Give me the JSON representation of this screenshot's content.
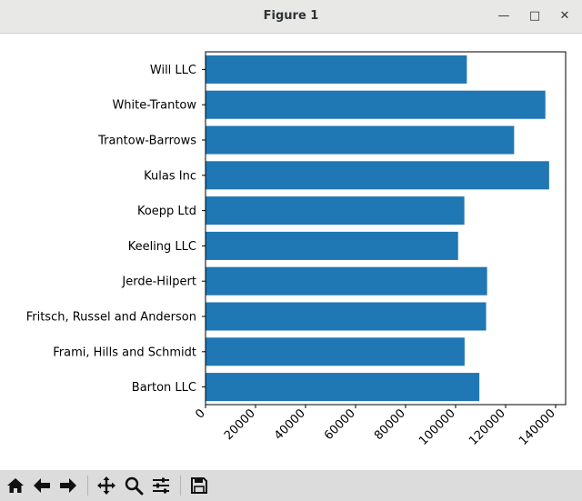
{
  "window": {
    "title": "Figure 1",
    "min_glyph": "—",
    "max_glyph": "□",
    "close_glyph": "✕"
  },
  "toolbar": {
    "icons": [
      "home-icon",
      "back-icon",
      "forward-icon",
      "pan-icon",
      "zoom-icon",
      "subplots-icon",
      "save-icon"
    ]
  },
  "chart_data": {
    "type": "bar",
    "orientation": "horizontal",
    "categories": [
      "Barton LLC",
      "Frami, Hills and Schmidt",
      "Fritsch, Russel and Anderson",
      "Jerde-Hilpert",
      "Keeling LLC",
      "Koepp Ltd",
      "Kulas Inc",
      "Trantow-Barrows",
      "White-Trantow",
      "Will LLC"
    ],
    "values": [
      109500,
      103600,
      112200,
      112600,
      101000,
      103500,
      137400,
      123400,
      135900,
      104500
    ],
    "title": "",
    "xlabel": "",
    "ylabel": "",
    "xlim": [
      0,
      144000
    ],
    "xticks": [
      "0",
      "20000",
      "40000",
      "60000",
      "80000",
      "100000",
      "120000",
      "140000"
    ],
    "bar_color": "#1f77b4",
    "grid": false
  }
}
